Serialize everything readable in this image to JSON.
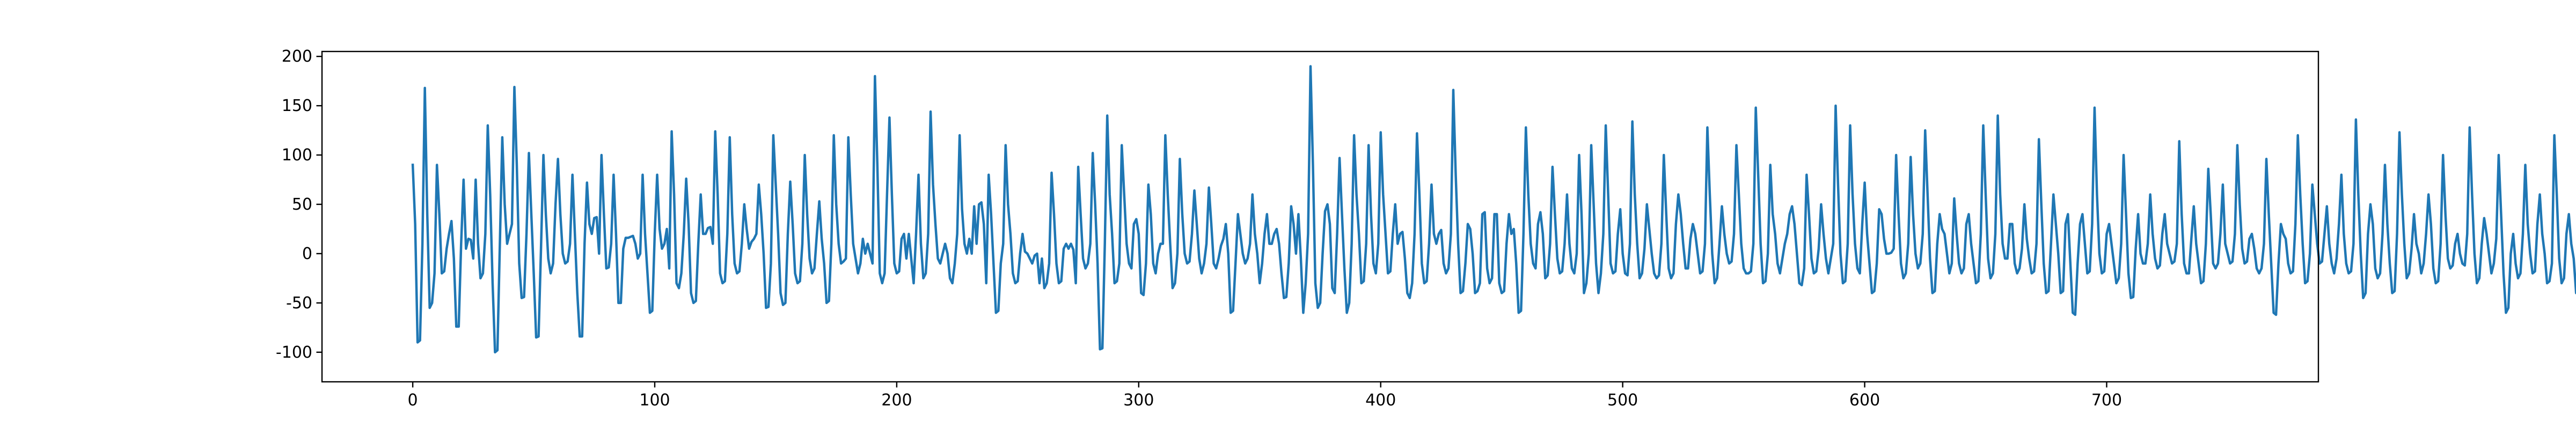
{
  "chart_data": {
    "type": "line",
    "title": "",
    "xlabel": "",
    "ylabel": "",
    "xlim": [
      -37.5,
      787.5
    ],
    "ylim": [
      -130,
      205
    ],
    "x_ticks": [
      0,
      100,
      200,
      300,
      400,
      500,
      600,
      700
    ],
    "y_ticks": [
      -100,
      -50,
      0,
      50,
      100,
      150,
      200
    ],
    "grid": false,
    "legend": "none",
    "series": [
      {
        "color": "#1f77b4",
        "x_start": 0,
        "x_step": 1,
        "values": [
          90,
          30,
          -90,
          -88,
          10,
          168,
          40,
          -55,
          -50,
          -20,
          90,
          40,
          -20,
          -18,
          5,
          20,
          33,
          -5,
          -74,
          -74,
          10,
          75,
          5,
          15,
          14,
          -5,
          75,
          10,
          -25,
          -20,
          20,
          130,
          60,
          -30,
          -100,
          -98,
          10,
          118,
          50,
          10,
          20,
          30,
          169,
          90,
          -10,
          -45,
          -44,
          20,
          102,
          40,
          -20,
          -85,
          -84,
          5,
          100,
          40,
          -5,
          -20,
          -10,
          50,
          96,
          40,
          0,
          -10,
          -8,
          10,
          80,
          20,
          -40,
          -84,
          -84,
          10,
          72,
          30,
          20,
          36,
          37,
          0,
          100,
          40,
          -15,
          -14,
          10,
          80,
          20,
          -50,
          -50,
          5,
          16,
          16,
          17,
          18,
          10,
          -5,
          0,
          80,
          20,
          -20,
          -60,
          -58,
          20,
          80,
          25,
          5,
          10,
          25,
          -15,
          124,
          60,
          -30,
          -35,
          -20,
          20,
          76,
          30,
          -40,
          -50,
          -48,
          10,
          60,
          20,
          20,
          26,
          27,
          10,
          124,
          60,
          -20,
          -30,
          -28,
          20,
          118,
          40,
          -10,
          -20,
          -18,
          10,
          50,
          25,
          5,
          12,
          15,
          20,
          70,
          40,
          0,
          -55,
          -54,
          -10,
          120,
          70,
          20,
          -40,
          -52,
          -50,
          20,
          73,
          30,
          -20,
          -30,
          -28,
          10,
          100,
          40,
          -5,
          -20,
          -15,
          20,
          53,
          15,
          -10,
          -50,
          -48,
          10,
          120,
          50,
          10,
          -10,
          -8,
          -5,
          118,
          60,
          10,
          -5,
          -20,
          -10,
          15,
          0,
          10,
          0,
          -10,
          180,
          90,
          -20,
          -30,
          -20,
          60,
          138,
          60,
          -10,
          -20,
          -18,
          15,
          20,
          -5,
          20,
          -5,
          -30,
          20,
          80,
          10,
          -25,
          -20,
          20,
          144,
          70,
          30,
          -5,
          -10,
          0,
          10,
          0,
          -25,
          -30,
          -10,
          20,
          120,
          45,
          10,
          0,
          15,
          0,
          48,
          10,
          50,
          52,
          30,
          -30,
          80,
          40,
          -10,
          -60,
          -58,
          -10,
          10,
          110,
          50,
          20,
          -20,
          -30,
          -28,
          0,
          20,
          2,
          0,
          -5,
          -10,
          -2,
          0,
          -30,
          -5,
          -35,
          -30,
          -10,
          82,
          40,
          -10,
          -30,
          -28,
          5,
          10,
          5,
          10,
          4,
          -30,
          88,
          40,
          -5,
          -15,
          -10,
          10,
          102,
          50,
          -10,
          -97,
          -96,
          10,
          140,
          60,
          20,
          -30,
          -28,
          -10,
          110,
          60,
          10,
          -10,
          -15,
          30,
          35,
          20,
          -40,
          -42,
          -10,
          70,
          40,
          -10,
          -20,
          0,
          10,
          10,
          120,
          60,
          10,
          -35,
          -30,
          0,
          96,
          40,
          0,
          -10,
          -8,
          20,
          64,
          30,
          -5,
          -20,
          -10,
          10,
          67,
          30,
          -10,
          -15,
          -5,
          8,
          15,
          30,
          0,
          -60,
          -58,
          -10,
          40,
          20,
          0,
          -10,
          -5,
          10,
          60,
          20,
          0,
          -30,
          -10,
          20,
          40,
          10,
          10,
          20,
          25,
          10,
          -20,
          -45,
          -44,
          -10,
          48,
          30,
          0,
          40,
          -5,
          -60,
          -30,
          20,
          190,
          90,
          -30,
          -55,
          -50,
          0,
          43,
          50,
          30,
          -35,
          -40,
          20,
          97,
          40,
          -15,
          -60,
          -50,
          10,
          120,
          60,
          20,
          -30,
          -28,
          10,
          110,
          40,
          -10,
          -20,
          10,
          123,
          60,
          20,
          -20,
          -18,
          20,
          50,
          10,
          20,
          22,
          -5,
          -40,
          -45,
          -30,
          20,
          122,
          60,
          -10,
          -30,
          -28,
          10,
          70,
          20,
          10,
          20,
          24,
          -10,
          -20,
          -15,
          20,
          166,
          80,
          10,
          -40,
          -38,
          -10,
          30,
          25,
          0,
          -40,
          -38,
          -30,
          40,
          42,
          -15,
          -30,
          -25,
          40,
          40,
          -30,
          -40,
          -38,
          10,
          40,
          20,
          25,
          -10,
          -60,
          -58,
          20,
          128,
          60,
          10,
          -10,
          -15,
          30,
          42,
          20,
          -25,
          -22,
          10,
          88,
          40,
          -5,
          -20,
          -18,
          10,
          60,
          10,
          -15,
          -20,
          0,
          100,
          40,
          -40,
          -30,
          0,
          110,
          50,
          -10,
          -40,
          -20,
          20,
          130,
          60,
          -10,
          -20,
          -18,
          20,
          45,
          0,
          -20,
          -22,
          10,
          134,
          60,
          10,
          -25,
          -20,
          5,
          50,
          25,
          0,
          -20,
          -25,
          -22,
          10,
          100,
          40,
          -15,
          -25,
          -20,
          30,
          60,
          40,
          10,
          -15,
          -15,
          15,
          30,
          20,
          0,
          -20,
          -18,
          10,
          128,
          60,
          0,
          -30,
          -25,
          10,
          48,
          20,
          0,
          -10,
          -8,
          20,
          110,
          60,
          10,
          -15,
          -20,
          -20,
          -18,
          10,
          148,
          80,
          10,
          -30,
          -28,
          0,
          90,
          40,
          20,
          -10,
          -20,
          -5,
          10,
          20,
          40,
          48,
          30,
          0,
          -30,
          -32,
          -15,
          80,
          40,
          -5,
          -20,
          -18,
          5,
          50,
          20,
          -5,
          -20,
          -5,
          10,
          150,
          70,
          0,
          -30,
          -28,
          10,
          130,
          60,
          10,
          -15,
          -20,
          30,
          72,
          20,
          -10,
          -40,
          -38,
          -10,
          45,
          40,
          15,
          0,
          0,
          1,
          5,
          100,
          40,
          -10,
          -25,
          -20,
          10,
          98,
          40,
          0,
          -15,
          -10,
          20,
          125,
          60,
          -5,
          -40,
          -38,
          10,
          40,
          25,
          20,
          0,
          -20,
          -10,
          56,
          20,
          -10,
          -20,
          -15,
          30,
          40,
          10,
          -10,
          -30,
          -28,
          20,
          130,
          60,
          -5,
          -25,
          -20,
          20,
          140,
          60,
          10,
          -5,
          -5,
          30,
          30,
          -10,
          -20,
          -15,
          5,
          50,
          15,
          -5,
          -20,
          -18,
          10,
          116,
          50,
          -10,
          -40,
          -38,
          10,
          60,
          30,
          0,
          -40,
          -38,
          30,
          40,
          -10,
          -60,
          -62,
          -10,
          30,
          40,
          10,
          -20,
          -18,
          30,
          148,
          60,
          0,
          -20,
          -18,
          20,
          30,
          10,
          -10,
          -30,
          -25,
          10,
          100,
          40,
          -20,
          -45,
          -44,
          5,
          40,
          0,
          -10,
          -10,
          10,
          60,
          20,
          -5,
          -15,
          -12,
          20,
          40,
          10,
          0,
          -10,
          -8,
          10,
          114,
          40,
          -10,
          -20,
          -20,
          15,
          48,
          10,
          -10,
          -30,
          -28,
          10,
          86,
          40,
          -10,
          -15,
          -10,
          20,
          70,
          10,
          0,
          -10,
          -8,
          20,
          110,
          50,
          5,
          -10,
          -8,
          15,
          20,
          5,
          -15,
          -20,
          -15,
          10,
          96,
          40,
          -10,
          -60,
          -62,
          -10,
          30,
          20,
          15,
          -10,
          -20,
          -18,
          30,
          120,
          60,
          10,
          -30,
          -28,
          0,
          70,
          40,
          10,
          -10,
          -8,
          20,
          48,
          10,
          -10,
          -20,
          -5,
          30,
          80,
          20,
          -10,
          -20,
          -18,
          10,
          136,
          60,
          0,
          -45,
          -40,
          20,
          50,
          30,
          -15,
          -25,
          -20,
          20,
          90,
          30,
          -10,
          -40,
          -38,
          20,
          123,
          60,
          10,
          -25,
          -20,
          5,
          40,
          10,
          0,
          -20,
          -10,
          20,
          60,
          30,
          -15,
          -30,
          -28,
          10,
          100,
          40,
          -5,
          -15,
          -12,
          10,
          20,
          0,
          -10,
          -12,
          20,
          128,
          60,
          0,
          -30,
          -25,
          10,
          36,
          20,
          0,
          -20,
          -10,
          15,
          100,
          40,
          -20,
          -60,
          -55,
          0,
          20,
          -10,
          -25,
          -20,
          20,
          90,
          30,
          0,
          -20,
          -18,
          30,
          60,
          20,
          0,
          -30,
          -28,
          -10,
          120,
          60,
          -5,
          -30,
          -25,
          20,
          40,
          10,
          -5,
          -40,
          -38,
          20,
          80,
          40,
          0,
          -10,
          -8,
          10,
          50,
          30,
          -5,
          -20,
          -18,
          10,
          122,
          60,
          10,
          -20,
          -18,
          5,
          40,
          10,
          -10,
          -30,
          -28,
          10,
          64,
          20,
          -5,
          -15,
          -12,
          20,
          20,
          -10,
          -30,
          -25,
          10,
          90,
          40,
          -10,
          -30,
          -28,
          10,
          50,
          15,
          -10,
          -20,
          -18,
          20,
          40,
          10,
          -5,
          -15,
          -12,
          15,
          88,
          40,
          -10,
          -15,
          -12,
          20,
          40,
          10,
          0,
          -20,
          -10,
          10,
          130,
          60,
          0,
          -40,
          -38,
          -10,
          20,
          10,
          -5,
          -15,
          -12,
          20,
          48,
          15,
          -10,
          -25,
          -20,
          10,
          95,
          40,
          0,
          -10,
          -8,
          5,
          30,
          15,
          0,
          -10,
          -5,
          20,
          106,
          40,
          -10,
          -30,
          -28,
          10,
          60,
          30,
          0,
          -10,
          -8,
          15,
          40,
          20,
          -5,
          -15,
          -12,
          20
        ]
      }
    ]
  }
}
